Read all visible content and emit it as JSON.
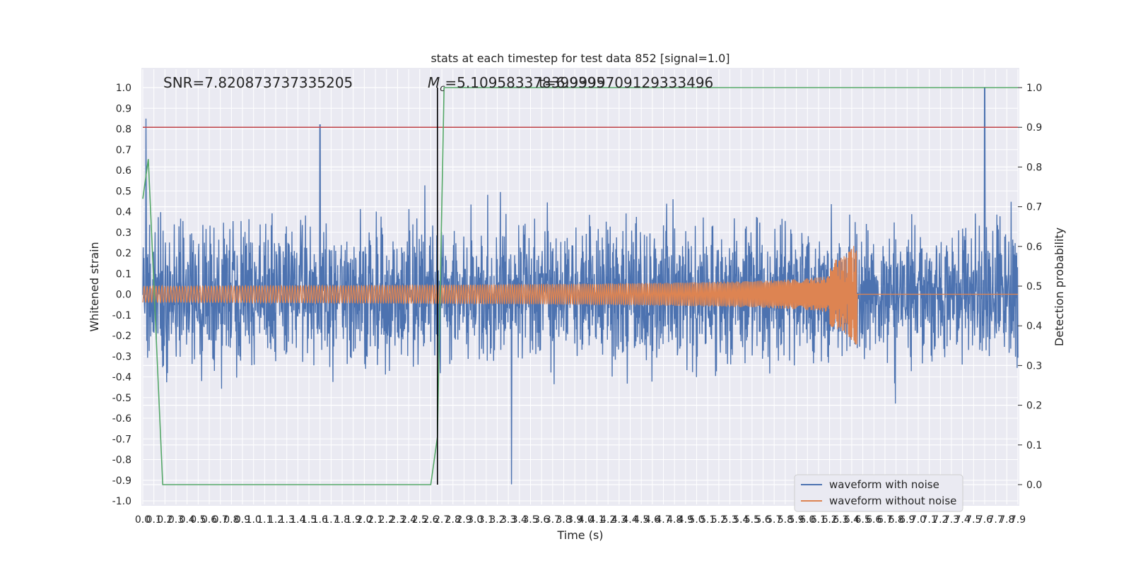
{
  "chart_data": {
    "type": "line",
    "title": "stats at each timestep for test data 852 [signal=1.0]",
    "xlabel": "Time (s)",
    "ylabel": "Whitened strain",
    "ylabel_right": "Detection probability",
    "xlim": [
      0.0,
      7.9
    ],
    "ylim": [
      -1.0,
      1.0
    ],
    "ylim_right": [
      0.0,
      1.0
    ],
    "grid": true,
    "legend_position": "lower right",
    "x_tick_labels": [
      "0.0",
      "0.1",
      "0.2",
      "0.3",
      "0.4",
      "0.5",
      "0.6",
      "0.7",
      "0.8",
      "0.9",
      "1.0",
      "1.1",
      "1.2",
      "1.3",
      "1.4",
      "1.5",
      "1.6",
      "1.7",
      "1.8",
      "1.9",
      "2.0",
      "2.1",
      "2.2",
      "2.3",
      "2.4",
      "2.5",
      "2.6",
      "2.7",
      "2.8",
      "2.9",
      "3.0",
      "3.1",
      "3.2",
      "3.3",
      "3.4",
      "3.5",
      "3.6",
      "3.7",
      "3.8",
      "3.9",
      "4.0",
      "4.1",
      "4.2",
      "4.3",
      "4.4",
      "4.5",
      "4.6",
      "4.7",
      "4.8",
      "4.9",
      "5.0",
      "5.1",
      "5.2",
      "5.3",
      "5.4",
      "5.5",
      "5.6",
      "5.7",
      "5.8",
      "5.9",
      "6.0",
      "6.1",
      "6.2",
      "6.3",
      "6.4",
      "6.5",
      "6.6",
      "6.7",
      "6.8",
      "6.9",
      "7.0",
      "7.1",
      "7.2",
      "7.3",
      "7.4",
      "7.5",
      "7.6",
      "7.7",
      "7.8",
      "7.9"
    ],
    "y_tick_labels": [
      "-1.0",
      "-0.9",
      "-0.8",
      "-0.7",
      "-0.6",
      "-0.5",
      "-0.4",
      "-0.3",
      "-0.2",
      "-0.1",
      "0.0",
      "0.1",
      "0.2",
      "0.3",
      "0.4",
      "0.5",
      "0.6",
      "0.7",
      "0.8",
      "0.9",
      "1.0"
    ],
    "y_right_tick_labels": [
      "0.0",
      "0.1",
      "0.2",
      "0.3",
      "0.4",
      "0.5",
      "0.6",
      "0.7",
      "0.8",
      "0.9",
      "1.0"
    ],
    "annotations": {
      "snr": "SNR=7.820873737335205",
      "mc": "M_c=5.109583378399395",
      "mc_overlap": "t=6.9999709129333496"
    },
    "threshold_line": {
      "value": 0.9,
      "axis": "right",
      "color": "#c44e52"
    },
    "merger_vline": {
      "x": 2.66,
      "color": "#000000"
    },
    "series": [
      {
        "name": "waveform with noise",
        "color": "#4c72b0",
        "description_values": {
          "amplitude_typical": 0.4,
          "peaks": [
            [
              0.03,
              0.85
            ],
            [
              1.6,
              0.82
            ],
            [
              7.6,
              1.0
            ],
            [
              3.33,
              -0.92
            ]
          ]
        }
      },
      {
        "name": "waveform without noise",
        "color": "#dd8452",
        "chirp": {
          "start": 0.0,
          "merger": 6.45,
          "amp_start": 0.04,
          "amp_peak": 0.25
        }
      },
      {
        "name": "",
        "axis": "right",
        "color": "#55a868",
        "x": [
          0.0,
          0.05,
          0.18,
          2.6,
          2.66,
          2.72,
          7.9
        ],
        "y": [
          0.72,
          0.82,
          0.0,
          0.0,
          0.12,
          1.0,
          1.0
        ]
      }
    ]
  }
}
